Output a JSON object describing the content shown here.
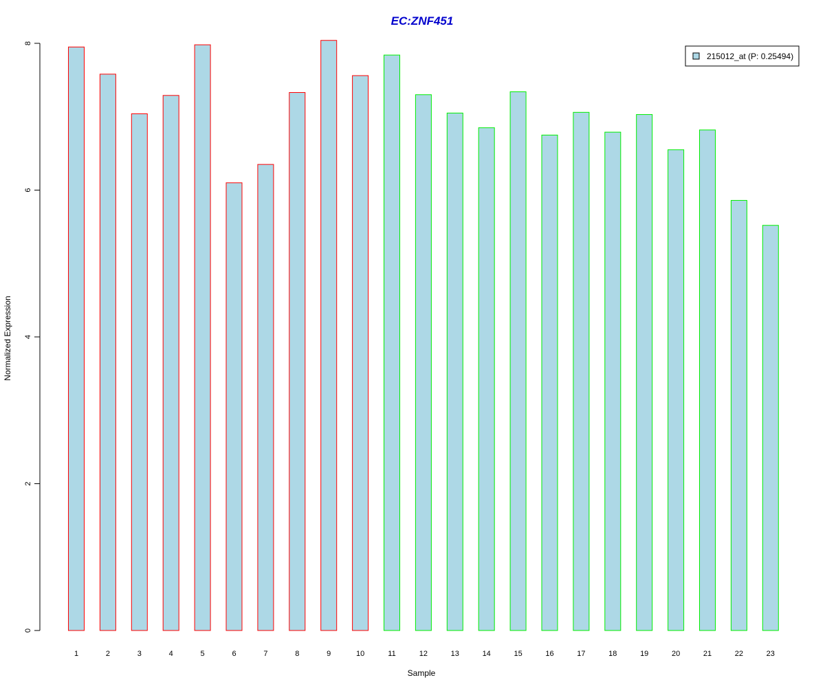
{
  "chart_data": {
    "type": "bar",
    "title": "EC:ZNF451",
    "xlabel": "Sample",
    "ylabel": "Normalized Expression",
    "ylim": [
      0,
      8
    ],
    "yticks": [
      "0",
      "2",
      "4",
      "6",
      "8"
    ],
    "categories": [
      "1",
      "2",
      "3",
      "4",
      "5",
      "6",
      "7",
      "8",
      "9",
      "10",
      "11",
      "12",
      "13",
      "14",
      "15",
      "16",
      "17",
      "18",
      "19",
      "20",
      "21",
      "22",
      "23"
    ],
    "series": [
      {
        "name": "215012_at (P: 0.25494)",
        "values": [
          7.95,
          7.58,
          7.04,
          7.29,
          7.98,
          6.1,
          6.35,
          7.33,
          8.04,
          7.56,
          7.84,
          7.3,
          7.05,
          6.85,
          7.34,
          6.75,
          7.06,
          6.79,
          7.03,
          6.55,
          6.82,
          5.86,
          5.52
        ]
      }
    ],
    "group_colors": [
      "#ff0000",
      "#ff0000",
      "#ff0000",
      "#ff0000",
      "#ff0000",
      "#ff0000",
      "#ff0000",
      "#ff0000",
      "#ff0000",
      "#ff0000",
      "#00ee00",
      "#00ee00",
      "#00ee00",
      "#00ee00",
      "#00ee00",
      "#00ee00",
      "#00ee00",
      "#00ee00",
      "#00ee00",
      "#00ee00",
      "#00ee00",
      "#00ee00",
      "#00ee00"
    ],
    "bar_fill": "#add8e6",
    "title_color": "#0000cd",
    "legend": "top-right",
    "grid": false
  }
}
